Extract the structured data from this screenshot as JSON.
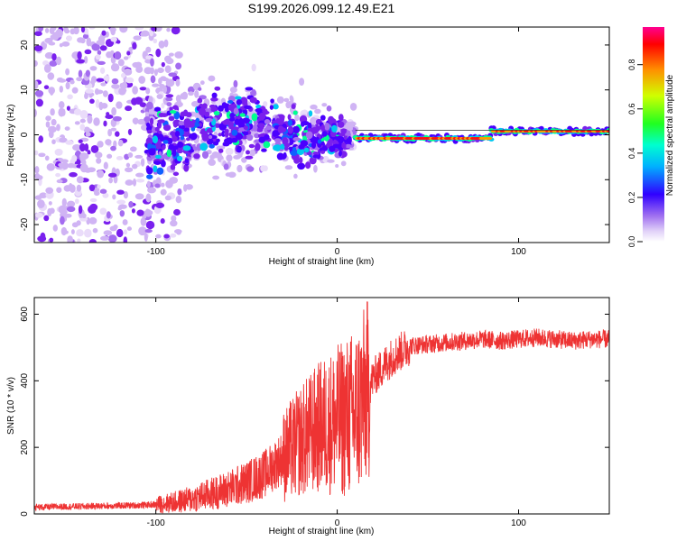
{
  "figure": {
    "title": "S199.2026.099.12.49.E21"
  },
  "chart_data": [
    {
      "type": "heatmap",
      "title": "S199.2026.099.12.49.E21",
      "xlabel": "Height of straight line (km)",
      "ylabel": "Frequency (Hz)",
      "xlim": [
        -167,
        150
      ],
      "ylim": [
        -24,
        24
      ],
      "x_ticks": [
        -100,
        0,
        100
      ],
      "y_ticks": [
        -20,
        -10,
        0,
        10,
        20
      ],
      "colorbar": {
        "label": "Normalized spectral amplitude",
        "range": [
          0.0,
          0.97
        ],
        "ticks": [
          0.0,
          0.2,
          0.4,
          0.6,
          0.8
        ],
        "colormap": [
          "#ffffff",
          "#c8a8f0",
          "#8a2be2",
          "#2a00ff",
          "#00c8ff",
          "#00ff80",
          "#c8ff00",
          "#ff8000",
          "#ff0000",
          "#ff00a0"
        ]
      },
      "description_points": {
        "noise_region_x": [
          -167,
          -100
        ],
        "transition_region_x": [
          -100,
          10
        ],
        "carrier_segments": [
          {
            "x_start": 10,
            "x_end": 85,
            "freq_hz": -0.8,
            "amplitude": 0.9
          },
          {
            "x_start": 85,
            "x_end": 150,
            "freq_hz": 0.8,
            "amplitude": 0.9
          }
        ]
      }
    },
    {
      "type": "line",
      "xlabel": "Height of straight line (km)",
      "ylabel": "SNR (10 * v/v)",
      "xlim": [
        -167,
        150
      ],
      "ylim": [
        0,
        650
      ],
      "x_ticks": [
        -100,
        0,
        100
      ],
      "y_ticks": [
        0,
        200,
        400,
        600
      ],
      "series": [
        {
          "name": "SNR",
          "color": "#ee3333",
          "x": [
            -167,
            -150,
            -130,
            -110,
            -100,
            -90,
            -80,
            -70,
            -60,
            -50,
            -40,
            -30,
            -20,
            -10,
            0,
            10,
            15,
            20,
            30,
            40,
            50,
            60,
            70,
            80,
            90,
            100,
            110,
            120,
            130,
            140,
            150
          ],
          "y": [
            20,
            22,
            24,
            26,
            28,
            35,
            45,
            60,
            75,
            95,
            120,
            170,
            220,
            260,
            280,
            300,
            350,
            410,
            470,
            505,
            510,
            515,
            520,
            525,
            520,
            525,
            530,
            525,
            520,
            525,
            525
          ]
        }
      ]
    }
  ]
}
